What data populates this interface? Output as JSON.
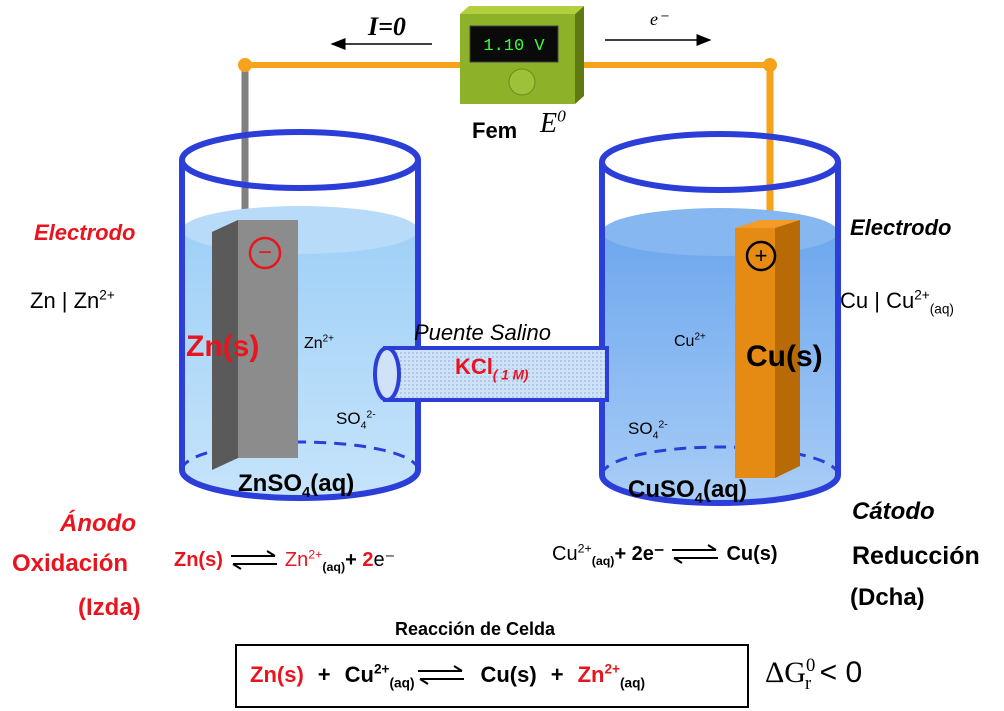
{
  "circuit": {
    "current": "I=0",
    "electron": "e⁻",
    "meter_reading": "1.10 V",
    "emf_label": "Fem",
    "emf_symbol": "E",
    "emf_symbol_sup": "0"
  },
  "left": {
    "electrode_label": "Electrodo",
    "couple": {
      "text": "Zn | Zn",
      "sup": "2+"
    },
    "sign": "−",
    "metal": "Zn(s)",
    "cation": {
      "text": "Zn",
      "sup": "2+"
    },
    "anion": {
      "text": "SO",
      "sub": "4",
      "sup": "2-"
    },
    "solution": {
      "text": "ZnSO",
      "sub": "4",
      "tail": "(aq)"
    },
    "role": "Ánodo",
    "process": "Oxidación",
    "side": "(Izda)"
  },
  "bridge": {
    "label": "Puente Salino",
    "salt": "KCl",
    "concentration": "( 1 M)"
  },
  "right": {
    "electrode_label": "Electrodo",
    "couple": {
      "text": "Cu | Cu",
      "sup": "2+",
      "sub": "(aq)"
    },
    "sign": "+",
    "metal": "Cu(s)",
    "cation": {
      "text": "Cu",
      "sup": "2+"
    },
    "anion": {
      "text": "SO",
      "sub": "4",
      "sup": "2-"
    },
    "solution": {
      "text": "CuSO",
      "sub": "4",
      "tail": "(aq)"
    },
    "role": "Cátodo",
    "process": "Reducción",
    "side": "(Dcha)"
  },
  "anode_reaction": {
    "reactant": "Zn(s)",
    "ion": "Zn",
    "charge": "2+",
    "state": "(aq)",
    "plus": "+",
    "count": "2",
    "electron": "e⁻"
  },
  "cathode_reaction": {
    "ion": "Cu",
    "charge": "2+",
    "state": "(aq)",
    "plus": "+ 2e⁻",
    "product": "Cu(s)"
  },
  "cell_reaction": {
    "title": "Reacción de Celda",
    "reactant1": "Zn(s)",
    "plus1": "+",
    "ion1": "Cu",
    "charge1": "2+",
    "state1": "(aq)",
    "product1": "Cu(s)",
    "plus2": "+",
    "ion2": "Zn",
    "charge2": "2+",
    "state2": "(aq)",
    "delta": "ΔG",
    "delta_sup": "0",
    "delta_sub": "r",
    "condition": "< 0"
  }
}
